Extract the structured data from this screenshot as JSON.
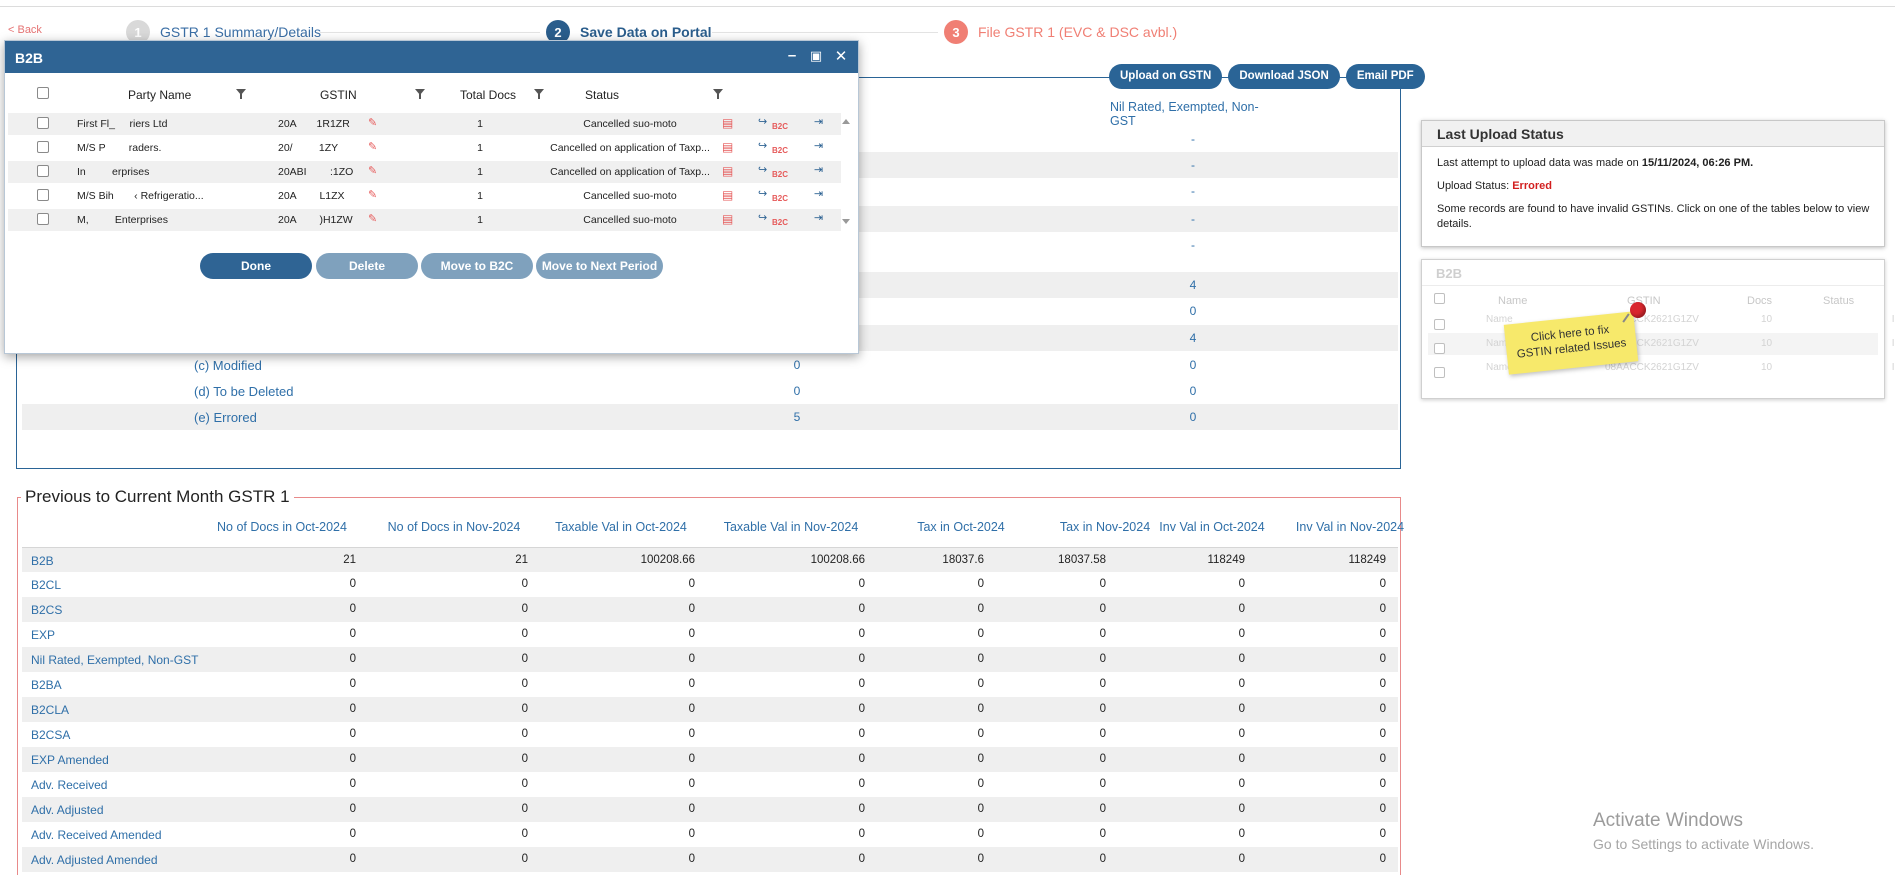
{
  "nav": {
    "back_label": "< Back",
    "steps": [
      {
        "num": "1",
        "label": "GSTR 1 Summary/Details"
      },
      {
        "num": "2",
        "label": "Save Data on Portal"
      },
      {
        "num": "3",
        "label": "File GSTR 1 (EVC & DSC avbl.)"
      }
    ]
  },
  "actions": {
    "upload": "Upload on GSTN",
    "download": "Download JSON",
    "email": "Email PDF"
  },
  "summary": {
    "col_nil": "Nil Rated, Exempted, Non-GST",
    "rows_top": [
      {
        "v2": "-"
      },
      {
        "v2": "-"
      },
      {
        "v2": "-"
      },
      {
        "v2": "-"
      },
      {
        "v2": "-"
      },
      {
        "v2": "4"
      },
      {
        "v2": "0"
      },
      {
        "v2": "4"
      }
    ],
    "rows_labeled": [
      {
        "label": "(c) Modified",
        "v1": "0",
        "v2": "0"
      },
      {
        "label": "(d) To be Deleted",
        "v1": "0",
        "v2": "0"
      },
      {
        "label": "(e) Errored",
        "v1": "5",
        "v2": "0"
      }
    ]
  },
  "prev_month": {
    "title": "Previous to Current Month GSTR 1",
    "headers": [
      "No of Docs in Oct-2024",
      "No of Docs in Nov-2024",
      "Taxable Val in Oct-2024",
      "Taxable Val in Nov-2024",
      "Tax in Oct-2024",
      "Tax in Nov-2024",
      "Inv Val in Oct-2024",
      "Inv Val in Nov-2024"
    ],
    "rows": [
      {
        "label": "B2B",
        "vals": [
          "21",
          "21",
          "100208.66",
          "100208.66",
          "18037.6",
          "18037.58",
          "118249",
          "118249"
        ]
      },
      {
        "label": "B2CL",
        "vals": [
          "0",
          "0",
          "0",
          "0",
          "0",
          "0",
          "0",
          "0"
        ]
      },
      {
        "label": "B2CS",
        "vals": [
          "0",
          "0",
          "0",
          "0",
          "0",
          "0",
          "0",
          "0"
        ]
      },
      {
        "label": "EXP",
        "vals": [
          "0",
          "0",
          "0",
          "0",
          "0",
          "0",
          "0",
          "0"
        ]
      },
      {
        "label": "Nil Rated, Exempted, Non-GST",
        "vals": [
          "0",
          "0",
          "0",
          "0",
          "0",
          "0",
          "0",
          "0"
        ]
      },
      {
        "label": "B2BA",
        "vals": [
          "0",
          "0",
          "0",
          "0",
          "0",
          "0",
          "0",
          "0"
        ]
      },
      {
        "label": "B2CLA",
        "vals": [
          "0",
          "0",
          "0",
          "0",
          "0",
          "0",
          "0",
          "0"
        ]
      },
      {
        "label": "B2CSA",
        "vals": [
          "0",
          "0",
          "0",
          "0",
          "0",
          "0",
          "0",
          "0"
        ]
      },
      {
        "label": "EXP Amended",
        "vals": [
          "0",
          "0",
          "0",
          "0",
          "0",
          "0",
          "0",
          "0"
        ]
      },
      {
        "label": "Adv. Received",
        "vals": [
          "0",
          "0",
          "0",
          "0",
          "0",
          "0",
          "0",
          "0"
        ]
      },
      {
        "label": "Adv. Adjusted",
        "vals": [
          "0",
          "0",
          "0",
          "0",
          "0",
          "0",
          "0",
          "0"
        ]
      },
      {
        "label": "Adv. Received Amended",
        "vals": [
          "0",
          "0",
          "0",
          "0",
          "0",
          "0",
          "0",
          "0"
        ]
      },
      {
        "label": "Adv. Adjusted Amended",
        "vals": [
          "0",
          "0",
          "0",
          "0",
          "0",
          "0",
          "0",
          "0"
        ]
      }
    ]
  },
  "last_upload": {
    "title": "Last Upload Status",
    "attempt_prefix": "Last attempt to upload data was made on ",
    "attempt_time": "15/11/2024, 06:26 PM.",
    "status_label": "Upload Status: ",
    "status_value": "Errored",
    "message_line1": "Some records are found to have invalid GSTINs. Click on one of the tables below to view",
    "message_line2": "details."
  },
  "preview_card": {
    "title": "B2B",
    "headers": [
      "Name",
      "GSTIN",
      "Docs",
      "Status"
    ],
    "rows": [
      {
        "name": "Name",
        "gstin": "08AACCK2621G1ZV",
        "docs": "10",
        "status": "Inactive"
      },
      {
        "name": "Name",
        "gstin": "08AACCK2621G1ZV",
        "docs": "10",
        "status": "Inactive"
      },
      {
        "name": "Name",
        "gstin": "08AACCK2621G1ZV",
        "docs": "10",
        "status": "Inactive"
      }
    ],
    "sticky_line1": "Click here to fix",
    "sticky_line2": "GSTIN related Issues"
  },
  "dialog": {
    "title": "B2B",
    "headers": {
      "party": "Party Name",
      "gstin": "GSTIN",
      "docs": "Total Docs",
      "status": "Status"
    },
    "rows": [
      {
        "party": "First Fl_     riers Ltd",
        "gstin": "20A       1R1ZR",
        "docs": "1",
        "status": "Cancelled suo-moto"
      },
      {
        "party": "M/S P        raders.",
        "gstin": "20/         1ZY",
        "docs": "1",
        "status": "Cancelled on application of Taxp..."
      },
      {
        "party": "In         erprises",
        "gstin": "20ABI        :1ZO",
        "docs": "1",
        "status": "Cancelled on application of Taxp..."
      },
      {
        "party": "M/S Bih       ‹ Refrigeratio...",
        "gstin": "20A        L1ZX",
        "docs": "1",
        "status": "Cancelled suo-moto"
      },
      {
        "party": "M,         Enterprises",
        "gstin": "20A        )H1ZW",
        "docs": "1",
        "status": "Cancelled suo-moto"
      }
    ],
    "b2c_tag": "B2C",
    "buttons": {
      "done": "Done",
      "delete": "Delete",
      "move_b2c": "Move to B2C",
      "move_next": "Move to Next Period"
    }
  },
  "watermark": {
    "line1": "Activate Windows",
    "line2": "Go to Settings to activate Windows."
  }
}
